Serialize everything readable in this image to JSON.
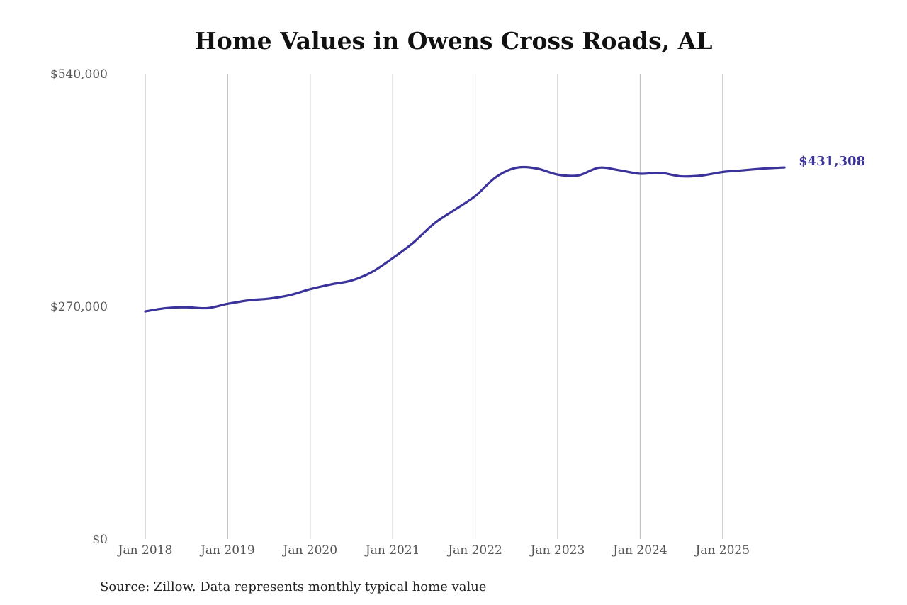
{
  "chart_data": {
    "type": "line",
    "title": "Home Values in Owens Cross Roads, AL",
    "source": "Source: Zillow. Data represents monthly typical home value",
    "xlabel": "",
    "ylabel": "",
    "ylim": [
      0,
      540000
    ],
    "y_ticks": [
      0,
      270000,
      540000
    ],
    "y_tick_labels": [
      "$0",
      "$270,000",
      "$540,000"
    ],
    "x_ticks": [
      "2018-01",
      "2019-01",
      "2020-01",
      "2021-01",
      "2022-01",
      "2023-01",
      "2024-01",
      "2025-01"
    ],
    "x_tick_labels": [
      "Jan 2018",
      "Jan 2019",
      "Jan 2020",
      "Jan 2021",
      "Jan 2022",
      "Jan 2023",
      "Jan 2024",
      "Jan 2025"
    ],
    "grid": "vertical",
    "line_color": "#3b339b",
    "end_label": "$431,308",
    "series": [
      {
        "x": [
          "2018-01",
          "2018-04",
          "2018-07",
          "2018-10",
          "2019-01",
          "2019-04",
          "2019-07",
          "2019-10",
          "2020-01",
          "2020-04",
          "2020-07",
          "2020-10",
          "2021-01",
          "2021-04",
          "2021-07",
          "2021-10",
          "2022-01",
          "2022-04",
          "2022-07",
          "2022-10",
          "2023-01",
          "2023-04",
          "2023-07",
          "2023-10",
          "2024-01",
          "2024-04",
          "2024-07",
          "2024-10",
          "2025-01",
          "2025-04",
          "2025-07",
          "2025-10"
        ],
        "values": [
          264200,
          268000,
          269000,
          268000,
          273000,
          277000,
          279000,
          283000,
          290000,
          295500,
          300000,
          310000,
          326000,
          344000,
          366000,
          382000,
          398000,
          420000,
          431000,
          430000,
          423000,
          422000,
          431000,
          428000,
          424000,
          425000,
          421000,
          422000,
          426000,
          428000,
          430000,
          431308
        ]
      }
    ]
  }
}
